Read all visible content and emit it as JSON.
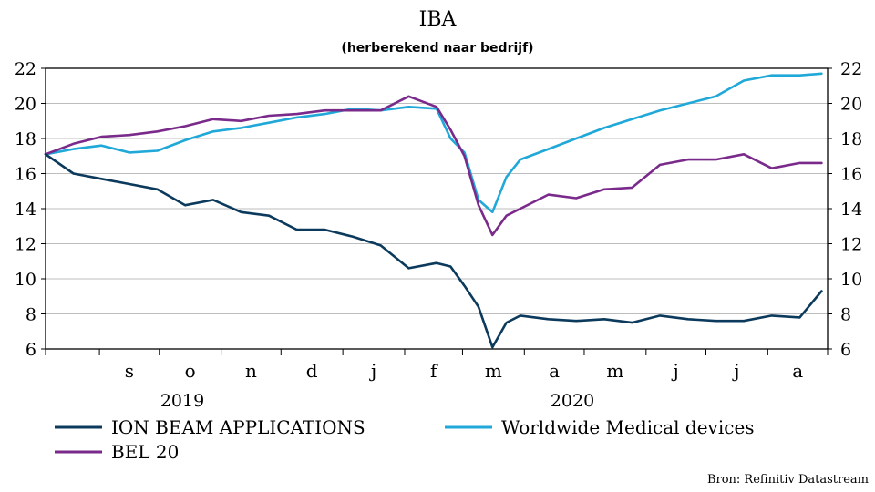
{
  "chart_data": {
    "type": "line",
    "title": "IBA",
    "subtitle": "(herberekend naar bedrijf)",
    "source": "Bron: Refinitiv Datastream",
    "ylim": [
      6,
      22
    ],
    "yticks": [
      6,
      8,
      10,
      12,
      14,
      16,
      18,
      20,
      22
    ],
    "y_axis_sides": [
      "left",
      "right"
    ],
    "grid": "horizontal",
    "legend_position": "bottom",
    "month_labels": [
      "s",
      "o",
      "n",
      "d",
      "j",
      "f",
      "m",
      "a",
      "m",
      "j",
      "j",
      "a"
    ],
    "year_labels": [
      "2019",
      "2020"
    ],
    "xlim": [
      "2019-08-05",
      "2020-08-31"
    ],
    "x": [
      "2019-08-05",
      "2019-08-19",
      "2019-09-02",
      "2019-09-16",
      "2019-09-30",
      "2019-10-14",
      "2019-10-28",
      "2019-11-11",
      "2019-11-25",
      "2019-12-09",
      "2019-12-23",
      "2020-01-06",
      "2020-01-20",
      "2020-02-03",
      "2020-02-17",
      "2020-02-24",
      "2020-03-02",
      "2020-03-09",
      "2020-03-16",
      "2020-03-23",
      "2020-03-30",
      "2020-04-13",
      "2020-04-27",
      "2020-05-11",
      "2020-05-25",
      "2020-06-08",
      "2020-06-22",
      "2020-07-06",
      "2020-07-20",
      "2020-08-03",
      "2020-08-17",
      "2020-08-28"
    ],
    "series": [
      {
        "name": "ION BEAM APPLICATIONS",
        "color": "#0b3a5c",
        "values": [
          17.1,
          16.0,
          15.7,
          15.4,
          15.1,
          14.2,
          14.5,
          13.8,
          13.6,
          12.8,
          12.8,
          12.4,
          11.9,
          10.6,
          10.9,
          10.7,
          9.6,
          8.4,
          6.1,
          7.5,
          7.9,
          7.7,
          7.6,
          7.7,
          7.5,
          7.9,
          7.7,
          7.6,
          7.6,
          7.9,
          7.8,
          9.3
        ]
      },
      {
        "name": "BEL 20",
        "color": "#7a2a8a",
        "values": [
          17.1,
          17.7,
          18.1,
          18.2,
          18.4,
          18.7,
          19.1,
          19.0,
          19.3,
          19.4,
          19.6,
          19.6,
          19.6,
          20.4,
          19.8,
          18.5,
          17.0,
          14.2,
          12.5,
          13.6,
          14.0,
          14.8,
          14.6,
          15.1,
          15.2,
          16.5,
          16.8,
          16.8,
          17.1,
          16.3,
          16.6,
          16.6
        ]
      },
      {
        "name": "Worldwide Medical devices",
        "color": "#1fa8d8",
        "values": [
          17.1,
          17.4,
          17.6,
          17.2,
          17.3,
          17.9,
          18.4,
          18.6,
          18.9,
          19.2,
          19.4,
          19.7,
          19.6,
          19.8,
          19.7,
          18.0,
          17.2,
          14.5,
          13.8,
          15.8,
          16.8,
          17.4,
          18.0,
          18.6,
          19.1,
          19.6,
          20.0,
          20.4,
          21.3,
          21.6,
          21.6,
          21.7
        ]
      }
    ]
  }
}
